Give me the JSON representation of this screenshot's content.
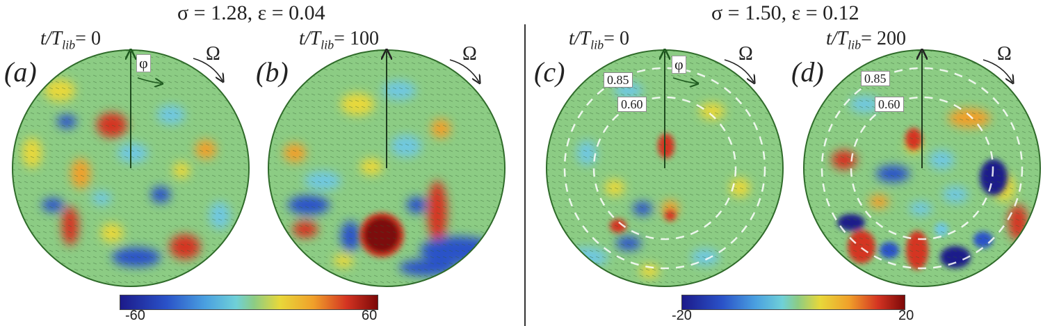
{
  "left_group": {
    "header": "σ = 1.28, ε = 0.04"
  },
  "right_group": {
    "header": "σ = 1.50, ε = 0.12"
  },
  "panels": [
    {
      "label": "(a)",
      "time_prefix": "t/T",
      "time_sub": "lib",
      "time_value": "= 0",
      "omega": "Ω",
      "phi": "φ"
    },
    {
      "label": "(b)",
      "time_prefix": "t/T",
      "time_sub": "lib",
      "time_value": "= 100",
      "omega": "Ω"
    },
    {
      "label": "(c)",
      "time_prefix": "t/T",
      "time_sub": "lib",
      "time_value": "= 0",
      "omega": "Ω",
      "phi": "φ",
      "ring_outer": "0.85",
      "ring_inner": "0.60"
    },
    {
      "label": "(d)",
      "time_prefix": "t/T",
      "time_sub": "lib",
      "time_value": "= 200",
      "omega": "Ω",
      "ring_outer": "0.85",
      "ring_inner": "0.60"
    }
  ],
  "colorbars": [
    {
      "min": "-60",
      "max": "60"
    },
    {
      "min": "-20",
      "max": "20"
    }
  ],
  "colors": {
    "background_field": "#8ccc84",
    "rim": "#2f6b2a",
    "strong_positive": "#8a0a0a",
    "positive": "#d43422",
    "weak_positive": "#e8d83a",
    "weak_negative": "#6fc8e0",
    "negative": "#2a52c8",
    "strong_negative": "#1c1a8a"
  }
}
